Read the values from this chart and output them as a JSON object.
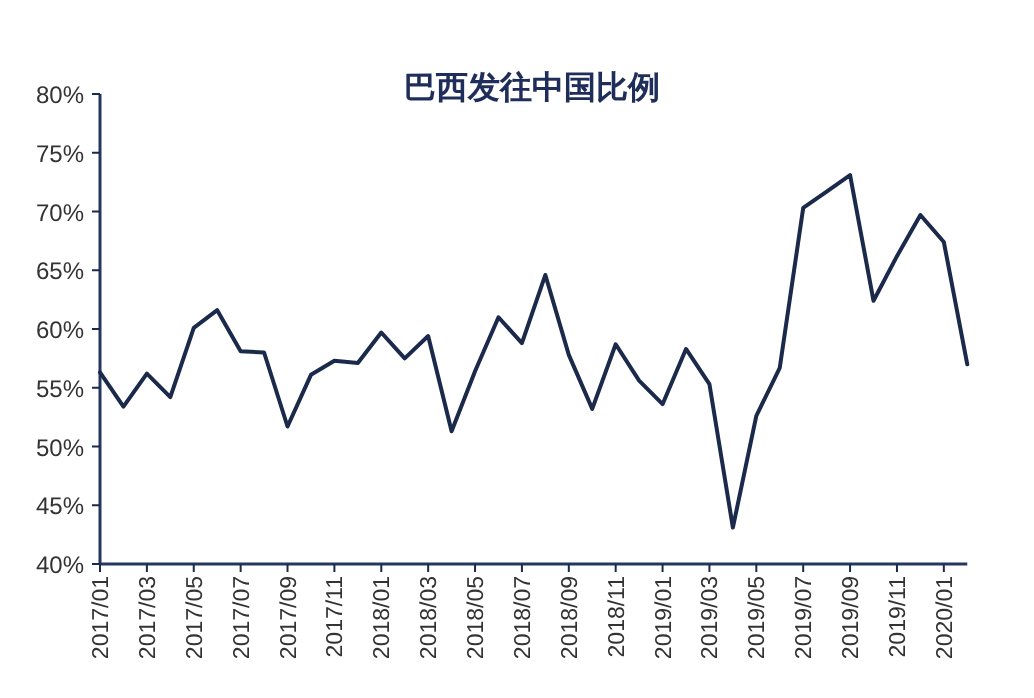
{
  "chart_data": {
    "type": "line",
    "title": "巴西发往中国比例",
    "categories": [
      "2017/01",
      null,
      "2017/03",
      null,
      "2017/05",
      null,
      "2017/07",
      null,
      "2017/09",
      null,
      "2017/11",
      null,
      "2018/01",
      null,
      "2018/03",
      null,
      "2018/05",
      null,
      "2018/07",
      null,
      "2018/09",
      null,
      "2018/11",
      null,
      "2019/01",
      null,
      "2019/03",
      null,
      "2019/05",
      null,
      "2019/07",
      null,
      "2019/09",
      null,
      "2019/11",
      null,
      "2020/01",
      null
    ],
    "series": [
      {
        "color": "#1b2a4a",
        "values": [
          56.3,
          53.4,
          56.2,
          54.2,
          60.1,
          61.6,
          58.1,
          58.0,
          51.7,
          56.1,
          57.3,
          57.1,
          59.7,
          57.5,
          59.4,
          51.3,
          56.4,
          61.0,
          58.8,
          64.6,
          57.8,
          53.2,
          58.7,
          55.6,
          53.6,
          58.3,
          55.3,
          43.1,
          52.6,
          56.7,
          70.3,
          71.7,
          73.1,
          62.4,
          66.2,
          69.7,
          67.4,
          57.0
        ]
      }
    ],
    "ylim": [
      40,
      80
    ],
    "yticks": [
      {
        "value": 40,
        "label": "40%"
      },
      {
        "value": 45,
        "label": "45%"
      },
      {
        "value": 50,
        "label": "50%"
      },
      {
        "value": 55,
        "label": "55%"
      },
      {
        "value": 60,
        "label": "60%"
      },
      {
        "value": 65,
        "label": "65%"
      },
      {
        "value": 70,
        "label": "70%"
      },
      {
        "value": 75,
        "label": "75%"
      },
      {
        "value": 80,
        "label": "80%"
      }
    ],
    "grid": false
  }
}
